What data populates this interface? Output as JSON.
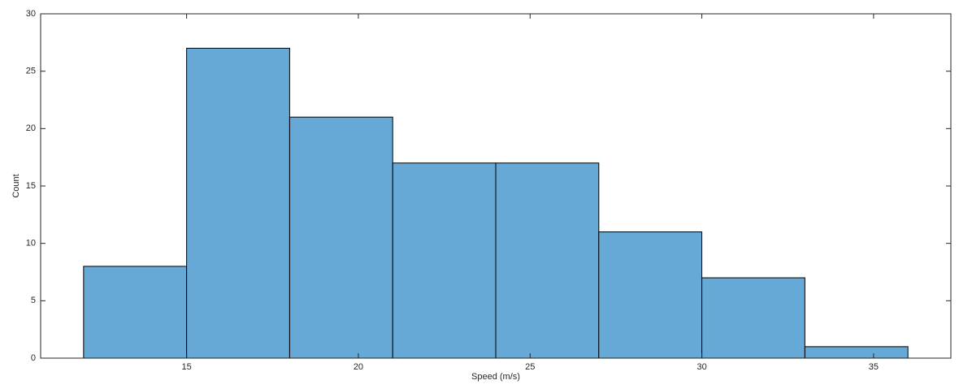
{
  "chart_data": {
    "type": "histogram",
    "x_label": "Speed (m/s)",
    "y_label": "Count",
    "bins": [
      12,
      15,
      18,
      21,
      24,
      27,
      30,
      33,
      36
    ],
    "counts": [
      8,
      27,
      21,
      17,
      17,
      11,
      7,
      1
    ],
    "color": "#66a9d6",
    "edge_color": "#000000",
    "xlim": [
      10.75,
      37.25
    ],
    "xticks": [
      15,
      20,
      25,
      30,
      35
    ],
    "ylim": [
      0,
      30
    ],
    "yticks": [
      0,
      5,
      10,
      15,
      20,
      25,
      30
    ]
  }
}
